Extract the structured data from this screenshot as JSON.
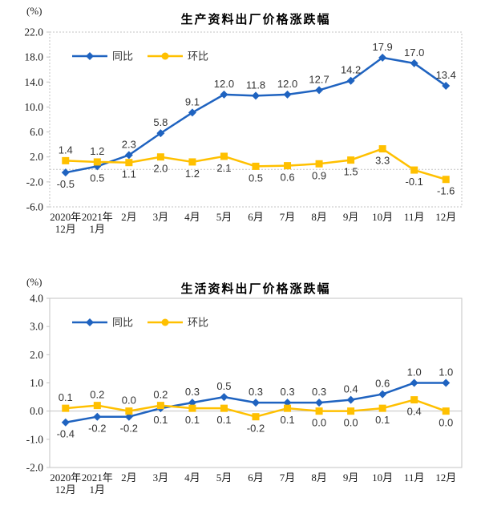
{
  "colors": {
    "yoy_blue": "#1f63c0",
    "mom_gold": "#ffc000",
    "grid_gray": "#c3c3c3",
    "data_label_text": "#333333",
    "axis_text": "#1a1a1a"
  },
  "chart_data": [
    {
      "type": "line",
      "title": "生产资料出厂价格涨跌幅",
      "unit_label": "(%)",
      "ylim": [
        -6.0,
        22.0
      ],
      "ystep": 4.0,
      "grid": "zero-line-only",
      "legend_position": "top-left-inside",
      "border_style": "dotted",
      "categories": [
        [
          "2020年",
          "12月"
        ],
        [
          "2021年",
          "1月"
        ],
        "2月",
        "3月",
        "4月",
        "5月",
        "6月",
        "7月",
        "8月",
        "9月",
        "10月",
        "11月",
        "12月"
      ],
      "legend": [
        {
          "label": "同比",
          "color": "#1f63c0",
          "marker": "diamond"
        },
        {
          "label": "环比",
          "color": "#ffc000",
          "marker": "circle"
        }
      ],
      "series": [
        {
          "name": "同比",
          "color": "#1f63c0",
          "marker": "diamond",
          "values": [
            -0.5,
            0.5,
            2.3,
            5.8,
            9.1,
            12.0,
            11.8,
            12.0,
            12.7,
            14.2,
            17.9,
            17.0,
            13.4
          ],
          "label_pos": [
            "below",
            "below",
            "above",
            "above",
            "above",
            "above",
            "above",
            "above",
            "above",
            "above",
            "above",
            "above",
            "above"
          ]
        },
        {
          "name": "环比",
          "color": "#ffc000",
          "marker": "square",
          "values": [
            1.4,
            1.2,
            1.1,
            2.0,
            1.2,
            2.1,
            0.5,
            0.6,
            0.9,
            1.5,
            3.3,
            -0.1,
            -1.6
          ],
          "label_pos": [
            "above",
            "above",
            "below",
            "below",
            "below",
            "below",
            "below",
            "below",
            "below",
            "below",
            "below",
            "below",
            "below"
          ]
        }
      ]
    },
    {
      "type": "line",
      "title": "生活资料出厂价格涨跌幅",
      "unit_label": "(%)",
      "ylim": [
        -2.0,
        4.0
      ],
      "ystep": 1.0,
      "grid": "zero-line-only",
      "legend_position": "top-left-inside",
      "border_style": "solid",
      "categories": [
        [
          "2020年",
          "12月"
        ],
        [
          "2021年",
          "1月"
        ],
        "2月",
        "3月",
        "4月",
        "5月",
        "6月",
        "7月",
        "8月",
        "9月",
        "10月",
        "11月",
        "12月"
      ],
      "legend": [
        {
          "label": "同比",
          "color": "#1f63c0",
          "marker": "diamond"
        },
        {
          "label": "环比",
          "color": "#ffc000",
          "marker": "circle"
        }
      ],
      "series": [
        {
          "name": "同比",
          "color": "#1f63c0",
          "marker": "diamond",
          "values": [
            -0.4,
            -0.2,
            -0.2,
            0.1,
            0.3,
            0.5,
            0.3,
            0.3,
            0.3,
            0.4,
            0.6,
            1.0,
            1.0
          ],
          "label_pos": [
            "below",
            "below",
            "below",
            "below",
            "above",
            "above",
            "above",
            "above",
            "above",
            "above",
            "above",
            "above",
            "above"
          ]
        },
        {
          "name": "环比",
          "color": "#ffc000",
          "marker": "square",
          "values": [
            0.1,
            0.2,
            0.0,
            0.2,
            0.1,
            0.1,
            -0.2,
            0.1,
            0.0,
            0.0,
            0.1,
            0.4,
            0.0
          ],
          "label_pos": [
            "above",
            "above",
            "above",
            "above",
            "below",
            "below",
            "below",
            "below",
            "below",
            "below",
            "below",
            "below",
            "below"
          ]
        }
      ]
    }
  ]
}
